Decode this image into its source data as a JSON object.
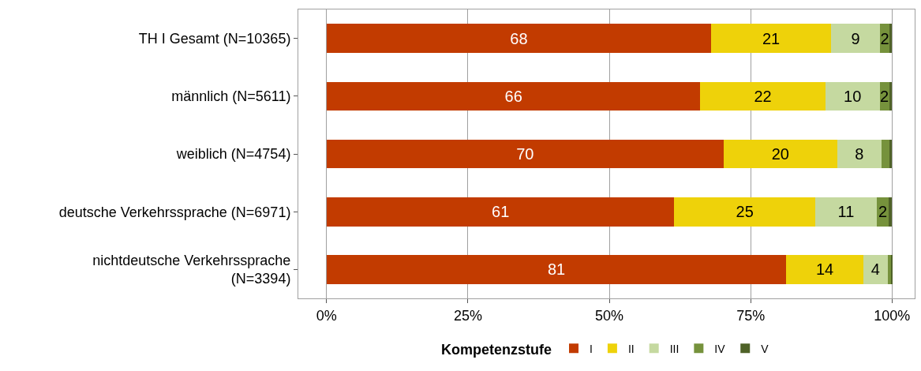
{
  "chart_data": {
    "type": "bar",
    "orientation": "horizontal",
    "stacked": true,
    "categories": [
      "TH I Gesamt (N=10365)",
      "männlich (N=5611)",
      "weiblich (N=4754)",
      "deutsche Verkehrssprache (N=6971)",
      "nichtdeutsche Verkehrssprache\n(N=3394)"
    ],
    "series": [
      {
        "name": "I",
        "color": "#c23b00",
        "values": [
          68.0,
          66.1,
          70.2,
          61.5,
          81.3
        ],
        "value_labels": [
          "68",
          "66",
          "70",
          "61",
          "81"
        ]
      },
      {
        "name": "II",
        "color": "#eed20a",
        "values": [
          21.2,
          22.1,
          20.1,
          24.9,
          13.6
        ],
        "value_labels": [
          "21",
          "22",
          "20",
          "25",
          "14"
        ]
      },
      {
        "name": "III",
        "color": "#c5d9a0",
        "values": [
          8.7,
          9.6,
          7.8,
          10.9,
          4.3
        ],
        "value_labels": [
          "9",
          "10",
          "8",
          "11",
          "4"
        ]
      },
      {
        "name": "IV",
        "color": "#76923c",
        "values": [
          1.6,
          1.7,
          1.4,
          2.1,
          0.7
        ],
        "value_labels": [
          "2",
          "2",
          null,
          "2",
          null
        ]
      },
      {
        "name": "V",
        "color": "#4f6228",
        "values": [
          0.5,
          0.5,
          0.5,
          0.6,
          0.1
        ],
        "value_labels": [
          null,
          null,
          null,
          null,
          null
        ]
      }
    ],
    "xlim": [
      -5,
      104
    ],
    "xticks": [
      {
        "value": 0,
        "label": "0%"
      },
      {
        "value": 25,
        "label": "25%"
      },
      {
        "value": 50,
        "label": "50%"
      },
      {
        "value": 75,
        "label": "75%"
      },
      {
        "value": 100,
        "label": "100%"
      }
    ],
    "grid": "x",
    "legend": "bottom",
    "legend_title": "Kompetenzstufe"
  }
}
